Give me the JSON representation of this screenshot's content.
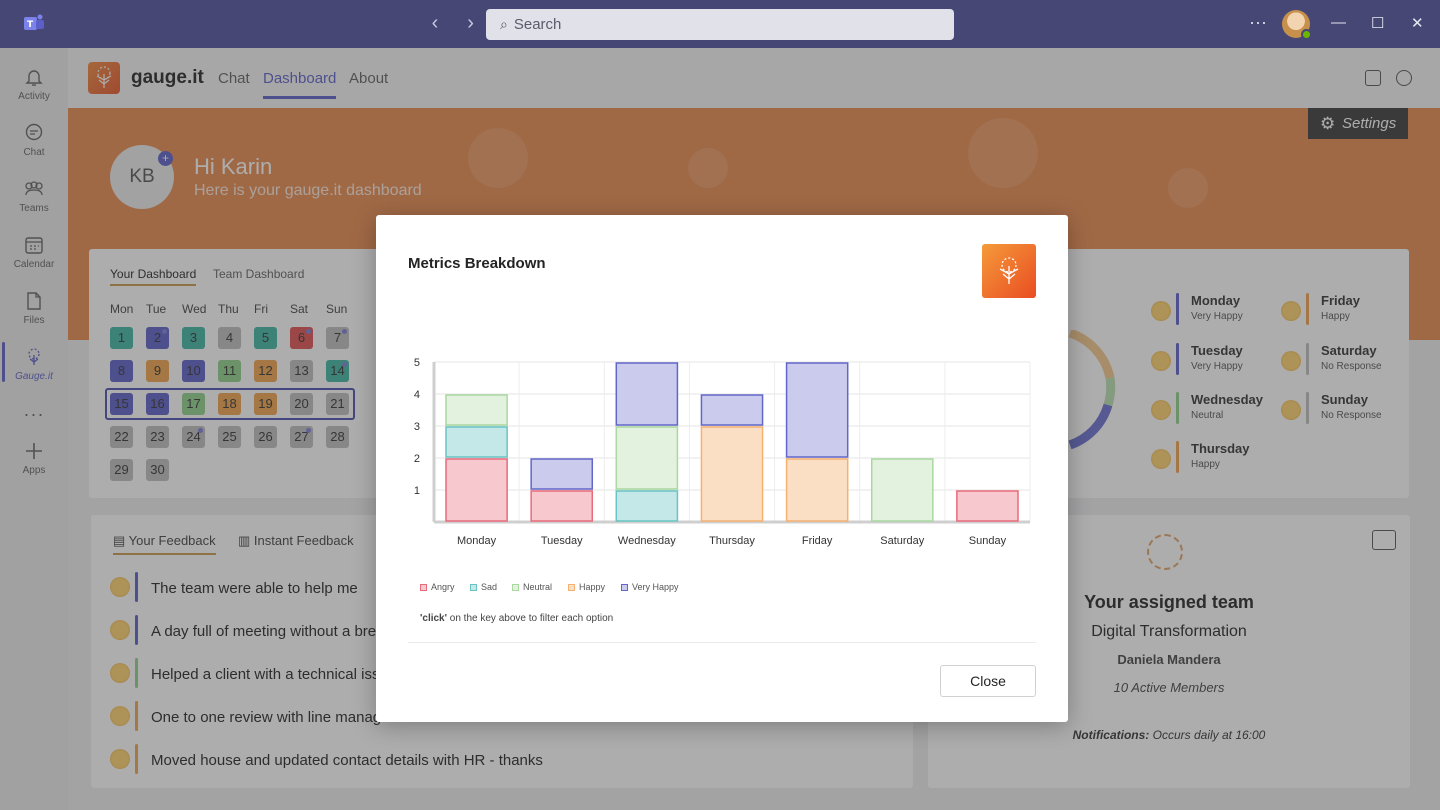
{
  "titlebar": {
    "search_placeholder": "Search",
    "more": "···",
    "minimize": "—",
    "maximize": "☐",
    "close": "✕",
    "back": "‹",
    "forward": "›"
  },
  "rail": [
    {
      "label": "Activity",
      "icon": "bell-icon"
    },
    {
      "label": "Chat",
      "icon": "chat-icon"
    },
    {
      "label": "Teams",
      "icon": "teams-icon"
    },
    {
      "label": "Calendar",
      "icon": "calendar-icon"
    },
    {
      "label": "Files",
      "icon": "files-icon"
    },
    {
      "label": "Gauge.it",
      "icon": "gauge-icon",
      "active": true
    },
    {
      "label": "",
      "icon": "more-icon"
    },
    {
      "label": "Apps",
      "icon": "apps-icon"
    }
  ],
  "app": {
    "name": "gauge.it",
    "tabs": [
      "Chat",
      "Dashboard",
      "About"
    ],
    "active_tab": "Dashboard"
  },
  "hero": {
    "initials": "KB",
    "greeting": "Hi Karin",
    "subtitle": "Here is your gauge.it dashboard",
    "settings": "Settings"
  },
  "dashboard": {
    "tabs": [
      "Your Dashboard",
      "Team Dashboard"
    ],
    "weekdays": [
      "Mon",
      "Tue",
      "Wed",
      "Thu",
      "Fri",
      "Sat",
      "Sun"
    ],
    "days": [
      {
        "n": "1",
        "c": "#3fb5a3"
      },
      {
        "n": "2",
        "c": "#5b5fc7",
        "p": true
      },
      {
        "n": "3",
        "c": "#3fb5a3"
      },
      {
        "n": "4",
        "c": "#bdbdbd"
      },
      {
        "n": "5",
        "c": "#3fb5a3"
      },
      {
        "n": "6",
        "c": "#e05050",
        "p": true
      },
      {
        "n": "7",
        "c": "#bdbdbd",
        "p": true
      },
      {
        "n": "8",
        "c": "#5b5fc7"
      },
      {
        "n": "9",
        "c": "#f0a24a"
      },
      {
        "n": "10",
        "c": "#5b5fc7"
      },
      {
        "n": "11",
        "c": "#8fd08a"
      },
      {
        "n": "12",
        "c": "#f0a24a"
      },
      {
        "n": "13",
        "c": "#bdbdbd"
      },
      {
        "n": "14",
        "c": "#3fb5a3",
        "p": true
      },
      {
        "n": "15",
        "c": "#5b5fc7"
      },
      {
        "n": "16",
        "c": "#5b5fc7"
      },
      {
        "n": "17",
        "c": "#8fd08a"
      },
      {
        "n": "18",
        "c": "#f0a24a"
      },
      {
        "n": "19",
        "c": "#f0a24a"
      },
      {
        "n": "20",
        "c": "#bdbdbd"
      },
      {
        "n": "21",
        "c": "#bdbdbd"
      },
      {
        "n": "22",
        "c": "#bdbdbd"
      },
      {
        "n": "23",
        "c": "#bdbdbd"
      },
      {
        "n": "24",
        "c": "#bdbdbd",
        "p": true
      },
      {
        "n": "25",
        "c": "#bdbdbd"
      },
      {
        "n": "26",
        "c": "#bdbdbd"
      },
      {
        "n": "27",
        "c": "#bdbdbd",
        "p": true
      },
      {
        "n": "28",
        "c": "#bdbdbd"
      },
      {
        "n": "29",
        "c": "#bdbdbd"
      },
      {
        "n": "30",
        "c": "#bdbdbd"
      }
    ]
  },
  "feedback": {
    "tabs": [
      "Your Feedback",
      "Instant Feedback"
    ],
    "items": [
      {
        "text": "The team were able to help me",
        "bar": "#5b5fc7"
      },
      {
        "text": "A day full of meeting without a break",
        "bar": "#5b5fc7"
      },
      {
        "text": "Helped a client with a technical issue",
        "bar": "#8fd08a"
      },
      {
        "text": "One to one review with line manager",
        "bar": "#f0a24a"
      },
      {
        "text": "Moved house and updated contact details with HR - thanks",
        "bar": "#f0a24a"
      }
    ]
  },
  "week_moods": [
    {
      "day": "Monday",
      "mood": "Very Happy",
      "bar": "#5b5fc7"
    },
    {
      "day": "Friday",
      "mood": "Happy",
      "bar": "#f0a24a"
    },
    {
      "day": "Tuesday",
      "mood": "Very Happy",
      "bar": "#5b5fc7"
    },
    {
      "day": "Saturday",
      "mood": "No Response",
      "bar": "#bdbdbd"
    },
    {
      "day": "Wednesday",
      "mood": "Neutral",
      "bar": "#8fd08a"
    },
    {
      "day": "Sunday",
      "mood": "No Response",
      "bar": "#bdbdbd"
    },
    {
      "day": "Thursday",
      "mood": "Happy",
      "bar": "#f0a24a"
    }
  ],
  "team": {
    "heading": "Your assigned team",
    "name": "Digital Transformation",
    "lead": "Daniela Mandera",
    "members": "10 Active Members",
    "notif_label": "Notifications:",
    "notif_value": " Occurs daily at 16:00"
  },
  "modal": {
    "title": "Metrics Breakdown",
    "hint_bold": "'click'",
    "hint_rest": " on the key above to filter each option",
    "close": "Close"
  },
  "chart_data": {
    "type": "bar",
    "stacked": true,
    "categories": [
      "Monday",
      "Tuesday",
      "Wednesday",
      "Thursday",
      "Friday",
      "Saturday",
      "Sunday"
    ],
    "ylim": [
      0,
      5
    ],
    "yticks": [
      1,
      2,
      3,
      4,
      5
    ],
    "grid": true,
    "legend_position": "bottom-left",
    "series": [
      {
        "name": "Angry",
        "values": [
          2,
          1,
          0,
          0,
          0,
          0,
          1
        ],
        "fill": "#f7c9cf",
        "stroke": "#e86b7b"
      },
      {
        "name": "Sad",
        "values": [
          1,
          0,
          1,
          0,
          0,
          0,
          0
        ],
        "fill": "#c4e8e8",
        "stroke": "#68c3c3"
      },
      {
        "name": "Neutral",
        "values": [
          1,
          0,
          2,
          0,
          0,
          2,
          0
        ],
        "fill": "#e3f1df",
        "stroke": "#a9d8a0"
      },
      {
        "name": "Happy",
        "values": [
          0,
          0,
          0,
          3,
          2,
          0,
          0
        ],
        "fill": "#fbdfc4",
        "stroke": "#f5b172"
      },
      {
        "name": "Very Happy",
        "values": [
          0,
          1,
          2,
          1,
          3,
          0,
          0
        ],
        "fill": "#cbcbee",
        "stroke": "#6366c9"
      }
    ]
  }
}
